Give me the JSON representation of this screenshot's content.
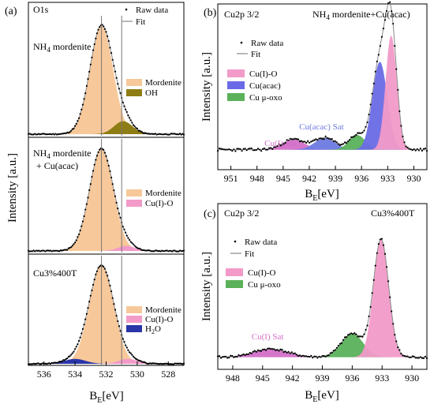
{
  "figure": {
    "panel_labels": [
      "(a)",
      "(b)",
      "(c)"
    ],
    "left_ylabel": "Intensity [a.u.]",
    "right_ylabel": "Intensity [a.u.]",
    "legend_common": {
      "raw": "Raw data",
      "fit": "Fit"
    },
    "colors": {
      "mordenite": "#f7c89a",
      "oh": "#8e7d14",
      "cu1o": "#f29ac8",
      "h2o": "#2b35a8",
      "cuacac": "#6a6ae6",
      "cuoxo": "#5ab15a",
      "sat1": "#d36fc8",
      "sat2": "#6e7ae0",
      "fitline": "#888888",
      "raw": "#000000"
    }
  },
  "chart_data": [
    {
      "id": "a",
      "type": "line",
      "title": "",
      "xlabel": "B",
      "xlabel_sub": "E",
      "xlabel_unit": "[eV]",
      "ylabel": "Intensity [a.u.]",
      "xlim": [
        537,
        527
      ],
      "xticks": [
        536,
        534,
        532,
        530,
        528
      ],
      "reference_lines": [
        532.3,
        531.0
      ],
      "subplots": [
        {
          "label": "O1s",
          "sample": "NH4 mordenite",
          "sample_html": [
            "NH",
            "4",
            " mordenite"
          ],
          "legend": [
            "Mordenite",
            "OH"
          ],
          "components": [
            {
              "name": "Mordenite",
              "center": 532.3,
              "fwhm": 1.75,
              "height": 1.0
            },
            {
              "name": "OH",
              "center": 530.9,
              "fwhm": 1.4,
              "height": 0.12
            }
          ]
        },
        {
          "label": "",
          "sample": "NH4 mordenite + Cu(acac)",
          "sample_lines": [
            "NH4 mordenite",
            "+ Cu(acac)"
          ],
          "legend": [
            "Mordenite",
            "Cu(I)-O"
          ],
          "components": [
            {
              "name": "Mordenite",
              "center": 532.3,
              "fwhm": 1.8,
              "height": 1.0
            },
            {
              "name": "Cu(I)-O",
              "center": 530.7,
              "fwhm": 1.3,
              "height": 0.05
            }
          ]
        },
        {
          "label": "",
          "sample": "Cu3%400T",
          "legend": [
            "Mordenite",
            "Cu(I)-O",
            "H2O"
          ],
          "components": [
            {
              "name": "Mordenite",
              "center": 532.3,
              "fwhm": 1.85,
              "height": 1.0
            },
            {
              "name": "Cu(I)-O",
              "center": 530.6,
              "fwhm": 1.4,
              "height": 0.05
            },
            {
              "name": "H2O",
              "center": 534.0,
              "fwhm": 1.6,
              "height": 0.05
            }
          ]
        }
      ]
    },
    {
      "id": "b",
      "type": "line",
      "title": "Cu2p 3/2",
      "sample": "NH4 mordenite+Cu(acac)",
      "xlabel": "B",
      "xlabel_sub": "E",
      "xlabel_unit": "[eV]",
      "ylabel": "Intensity [a.u.]",
      "xlim": [
        952.5,
        928.5
      ],
      "xticks": [
        951,
        948,
        945,
        942,
        939,
        936,
        933,
        930
      ],
      "legend": [
        "Raw data",
        "Fit",
        "Cu(I)-O",
        "Cu(acac)",
        "Cu μ-oxo"
      ],
      "annotations": [
        {
          "text": "Cu(I) Sat",
          "x": 945.3,
          "y": 0.13
        },
        {
          "text": "Cu(acac) Sat",
          "x": 940.6,
          "y": 0.2
        }
      ],
      "components": [
        {
          "name": "Cu(I) Sat",
          "center": 943.8,
          "fwhm": 3.0,
          "height": 0.07
        },
        {
          "name": "Cu(acac) Sat",
          "center": 940.2,
          "fwhm": 2.8,
          "height": 0.08
        },
        {
          "name": "Cu μ-oxo",
          "center": 936.5,
          "fwhm": 2.2,
          "height": 0.1
        },
        {
          "name": "Cu(acac)",
          "center": 933.9,
          "fwhm": 2.0,
          "height": 0.6
        },
        {
          "name": "Cu(I)-O",
          "center": 932.6,
          "fwhm": 1.5,
          "height": 0.78
        }
      ]
    },
    {
      "id": "c",
      "type": "line",
      "title": "Cu2p 3/2",
      "sample": "Cu3%400T",
      "xlabel": "B",
      "xlabel_sub": "E",
      "xlabel_unit": "[eV]",
      "ylabel": "Intensity [a.u.]",
      "xlim": [
        949.5,
        928.5
      ],
      "xticks": [
        948,
        945,
        942,
        939,
        936,
        933,
        930
      ],
      "legend": [
        "Raw data",
        "Fit",
        "Cu(I)-O",
        "Cu μ-oxo"
      ],
      "annotations": [
        {
          "text": "Cu(I) Sat",
          "x": 944.5,
          "y": 0.13
        }
      ],
      "components": [
        {
          "name": "Cu(I) Sat",
          "center": 944.2,
          "fwhm": 4.0,
          "height": 0.07
        },
        {
          "name": "Cu μ-oxo",
          "center": 936.0,
          "fwhm": 2.6,
          "height": 0.2
        },
        {
          "name": "Cu(I)-O",
          "center": 933.1,
          "fwhm": 1.8,
          "height": 1.0
        }
      ]
    }
  ]
}
